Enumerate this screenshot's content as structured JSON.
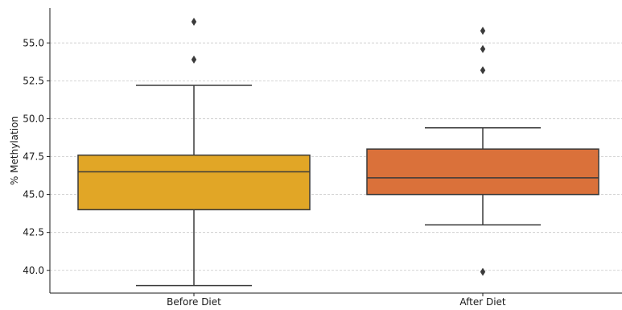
{
  "chart_data": {
    "type": "box",
    "title": "",
    "xlabel": "",
    "ylabel": "% Methylation",
    "ylim": [
      38.5,
      57.3
    ],
    "yticks": [
      40.0,
      42.5,
      45.0,
      47.5,
      50.0,
      52.5,
      55.0
    ],
    "ytick_labels": [
      "40.0",
      "42.5",
      "45.0",
      "47.5",
      "50.0",
      "52.5",
      "55.0"
    ],
    "grid": "horizontal dashed",
    "categories": [
      "Before Diet",
      "After Diet"
    ],
    "boxes": [
      {
        "category": "Before Diet",
        "color": "#e1a626",
        "whisker_low": 39.0,
        "q1": 44.0,
        "median": 46.5,
        "q3": 47.6,
        "whisker_high": 52.2,
        "outliers": [
          53.9,
          56.4
        ]
      },
      {
        "category": "After Diet",
        "color": "#da713a",
        "whisker_low": 43.0,
        "q1": 45.0,
        "median": 46.1,
        "q3": 48.0,
        "whisker_high": 49.4,
        "outliers": [
          39.9,
          53.2,
          54.6,
          55.8
        ]
      }
    ]
  }
}
